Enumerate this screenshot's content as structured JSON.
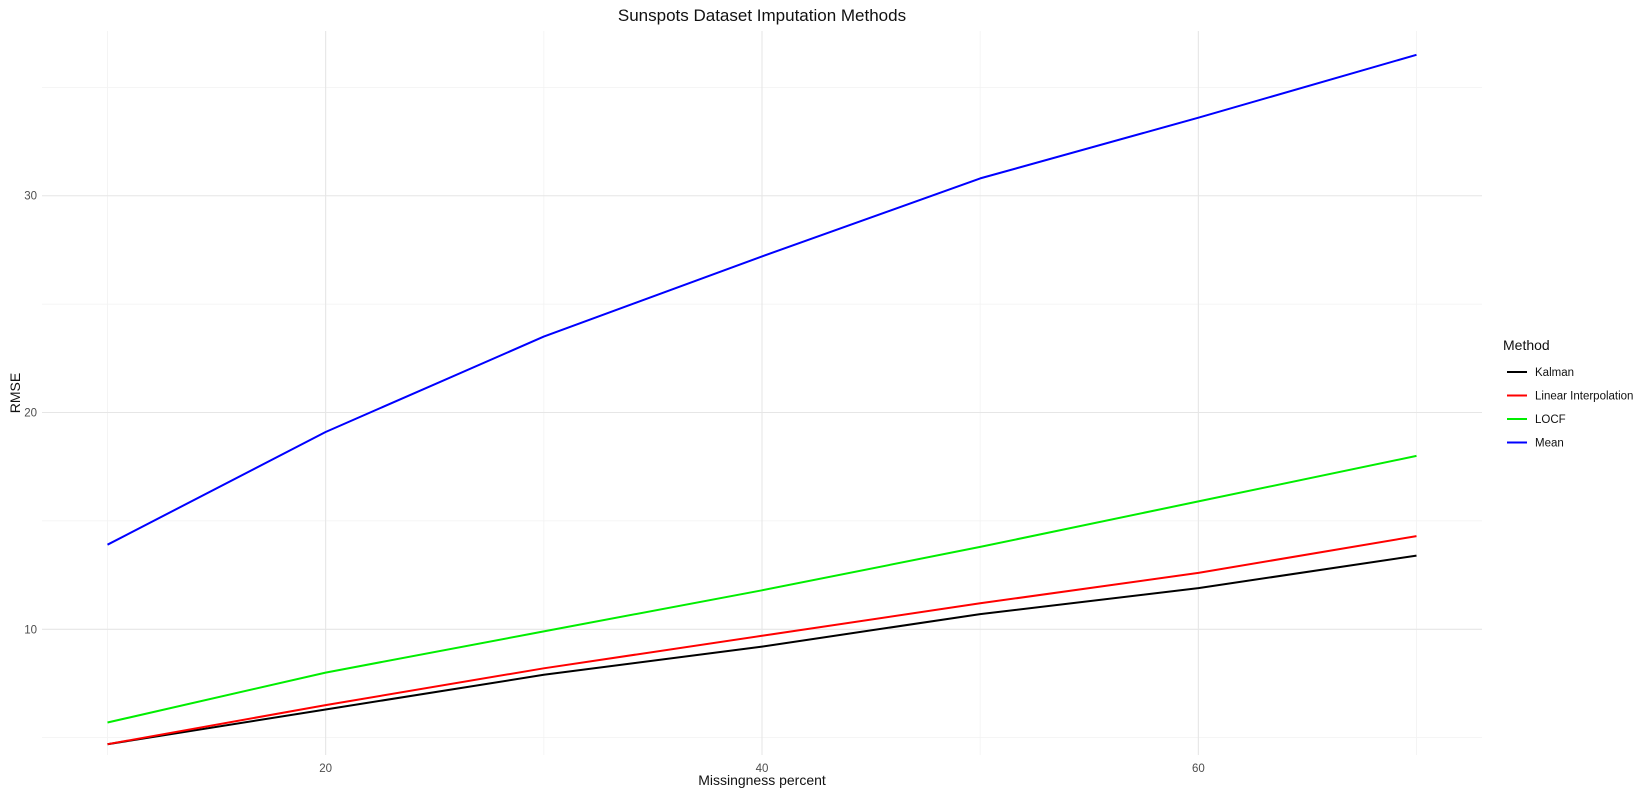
{
  "chart_data": {
    "type": "line",
    "title": "Sunspots Dataset Imputation Methods",
    "xlabel": "Missingness percent",
    "ylabel": "RMSE",
    "x": [
      10,
      20,
      30,
      40,
      50,
      60,
      70
    ],
    "xlim": [
      7,
      73
    ],
    "ylim": [
      4.2,
      37.6
    ],
    "x_major_ticks": [
      20,
      40,
      60
    ],
    "x_minor_ticks": [
      10,
      30,
      50,
      70
    ],
    "y_major_ticks": [
      10,
      20,
      30
    ],
    "y_minor_ticks": [
      5,
      15,
      25,
      35
    ],
    "grid": true,
    "legend": {
      "title": "Method",
      "placement": "right"
    },
    "series": [
      {
        "name": "Kalman",
        "color": "#000000",
        "values": [
          4.7,
          6.3,
          7.9,
          9.2,
          10.7,
          11.9,
          13.4
        ]
      },
      {
        "name": "Linear Interpolation",
        "color": "#ff0000",
        "values": [
          4.7,
          6.5,
          8.2,
          9.7,
          11.2,
          12.6,
          14.3
        ]
      },
      {
        "name": "LOCF",
        "color": "#00ee00",
        "values": [
          5.7,
          8.0,
          9.9,
          11.8,
          13.8,
          15.9,
          18.0
        ]
      },
      {
        "name": "Mean",
        "color": "#0000ff",
        "values": [
          13.9,
          19.1,
          23.5,
          27.2,
          30.8,
          33.6,
          36.5
        ]
      }
    ]
  }
}
